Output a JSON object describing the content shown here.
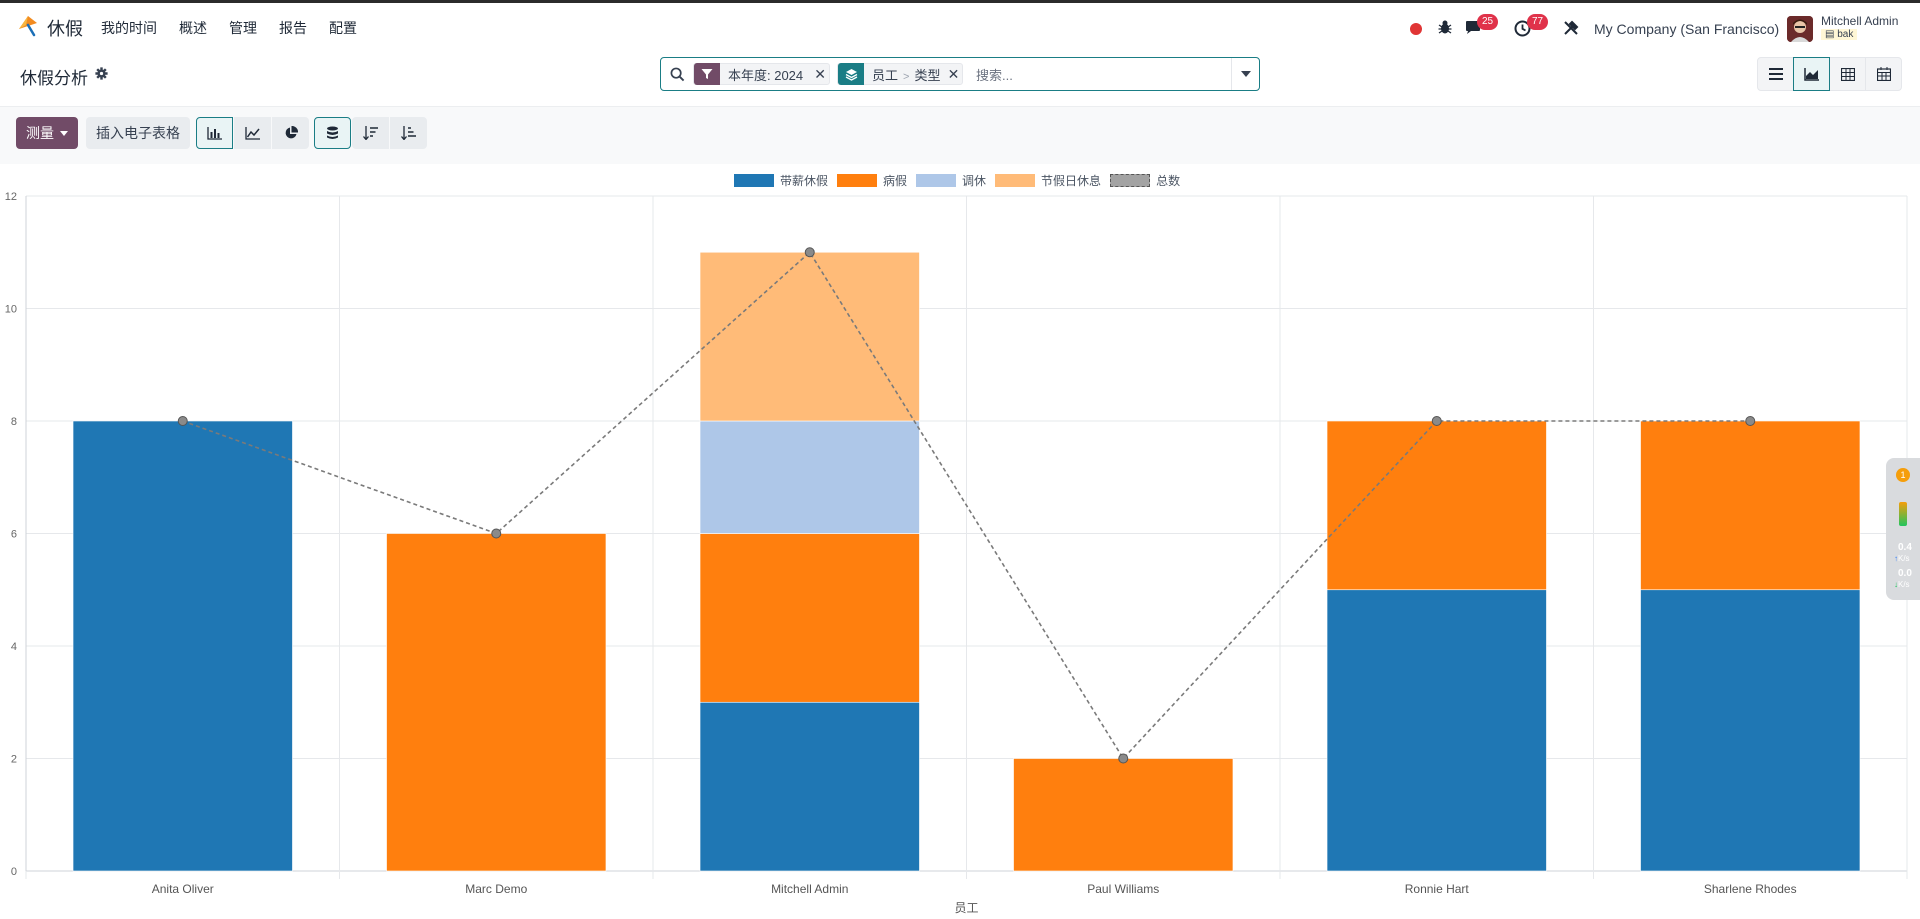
{
  "app": {
    "name": "休假",
    "menu": [
      "我的时间",
      "概述",
      "管理",
      "报告",
      "配置"
    ]
  },
  "systray": {
    "messages_count": "25",
    "activities_count": "77",
    "company": "My Company (San Francisco)",
    "user_name": "Mitchell Admin",
    "db_name": "bak"
  },
  "control": {
    "page_title": "休假分析",
    "facets": [
      {
        "type": "filter",
        "text": "本年度: 2024",
        "tag_color": "#714b67"
      },
      {
        "type": "groupby",
        "parts": [
          "员工",
          "类型"
        ],
        "tag_color": "#1a7d85"
      }
    ],
    "search_placeholder": "搜索..."
  },
  "toolbar": {
    "measure_label": "测量",
    "insert_label": "插入电子表格"
  },
  "widget": {
    "count": "1",
    "rate_up": "0.4",
    "rate_down": "0.0",
    "unit": "K/s"
  },
  "chart_data": {
    "type": "bar",
    "stacked": true,
    "xlabel": "员工",
    "ylabel": "",
    "ylim": [
      0,
      12
    ],
    "yticks": [
      0,
      2,
      4,
      6,
      8,
      10,
      12
    ],
    "categories": [
      "Anita Oliver",
      "Marc Demo",
      "Mitchell Admin",
      "Paul Williams",
      "Ronnie Hart",
      "Sharlene Rhodes"
    ],
    "series": [
      {
        "name": "带薪休假",
        "color": "#1f77b4",
        "values": [
          8,
          0,
          3,
          0,
          5,
          5
        ]
      },
      {
        "name": "病假",
        "color": "#ff7f0e",
        "values": [
          0,
          6,
          3,
          2,
          3,
          3
        ]
      },
      {
        "name": "调休",
        "color": "#aec7e8",
        "values": [
          0,
          0,
          2,
          0,
          0,
          0
        ]
      },
      {
        "name": "节假日休息",
        "color": "#ffbb78",
        "values": [
          0,
          0,
          3,
          0,
          0,
          0
        ]
      }
    ],
    "total": {
      "name": "总数",
      "values": [
        8,
        6,
        11,
        2,
        8,
        8
      ],
      "style": "dashed-line"
    },
    "legend_position": "top-center",
    "grid": true
  }
}
